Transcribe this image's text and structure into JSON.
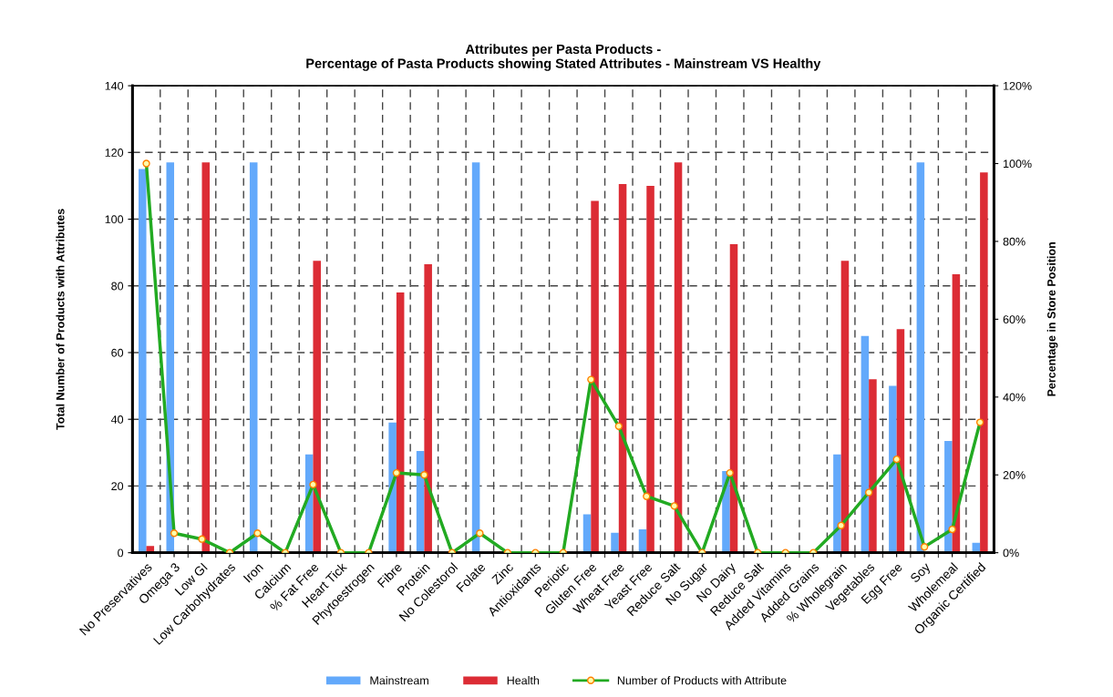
{
  "chart_data": {
    "type": "bar",
    "title": "Attributes per Pasta Products -\nPercentage of Pasta Products showing Stated Attributes - Mainstream VS Healthy",
    "ylabel": "Total Number of Products with Attributes",
    "y2label": "Percentage in Store Position",
    "categories": [
      "No Preservatives",
      "Omega 3",
      "Low GI",
      "Low Carbohydrates",
      "Iron",
      "Calcium",
      "% Fat Free",
      "Heart Tick",
      "Phytoestrogen",
      "Fibre",
      "Protein",
      "No Colestorol",
      "Folate",
      "Zinc",
      "Antioxidants",
      "Periotic",
      "Gluten Free",
      "Wheat Free",
      "Yeast Free",
      "Reduce Salt",
      "No Sugar",
      "No Dairy",
      "Reduce Salt",
      "Added Vitamins",
      "Added Grains",
      "% Wholegrain",
      "Vegetables",
      "Egg Free",
      "Soy",
      "Wholemeal",
      "Organic Certified"
    ],
    "series": [
      {
        "name": "Mainstream",
        "color": "#63a9fb",
        "values": [
          115,
          117,
          0,
          0,
          117,
          0,
          29.5,
          0,
          0,
          39,
          30.5,
          0,
          117,
          0,
          0,
          0,
          11.5,
          6,
          7,
          0,
          0,
          24.5,
          0,
          0,
          0,
          29.5,
          65,
          50,
          117,
          33.5,
          3
        ]
      },
      {
        "name": "Health",
        "color": "#dc2c35",
        "values": [
          2,
          0,
          117,
          0,
          0,
          0,
          87.5,
          0,
          0,
          78,
          86.5,
          0,
          0,
          0,
          0,
          0,
          105.5,
          110.5,
          110,
          117,
          0,
          92.5,
          0,
          0,
          0,
          87.5,
          52,
          67,
          0,
          83.5,
          114
        ]
      },
      {
        "name": "Number of Products with Attribute",
        "type": "line",
        "axis": "y2",
        "color": "#22aa22",
        "marker": "circle",
        "line_style": "solid",
        "values": [
          100,
          5,
          3.5,
          0,
          5,
          0,
          17.5,
          0,
          0,
          20.5,
          20,
          0,
          5,
          0,
          0,
          0,
          44.5,
          32.5,
          14.5,
          12,
          0,
          20.5,
          0,
          0,
          0,
          7,
          15.5,
          24,
          1.5,
          6,
          33.5
        ]
      }
    ],
    "ylim": [
      0,
      140
    ],
    "yticks": [
      0,
      20,
      40,
      60,
      80,
      100,
      120,
      140
    ],
    "y2lim": [
      0,
      120
    ],
    "y2ticks": [
      {
        "value": 0,
        "label": "0%"
      },
      {
        "value": 20,
        "label": "20%"
      },
      {
        "value": 40,
        "label": "40%"
      },
      {
        "value": 60,
        "label": "60%"
      },
      {
        "value": 80,
        "label": "80%"
      },
      {
        "value": 100,
        "label": "100%"
      },
      {
        "value": 120,
        "label": "120%"
      }
    ],
    "grid": true,
    "legend": "bottom"
  }
}
